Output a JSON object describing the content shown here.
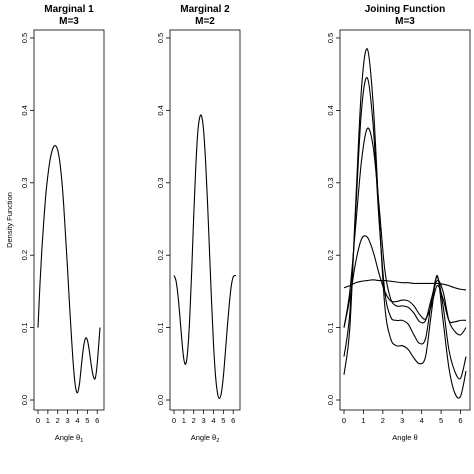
{
  "chart_data": [
    {
      "type": "line",
      "title": "Marginal 1",
      "subtitle": "M=3",
      "xlabel": "Angle θ",
      "xlabel_sub": "1",
      "ylabel": "Density Function",
      "xlim": [
        0,
        6.2832
      ],
      "ylim": [
        0,
        0.5
      ],
      "xticks": [
        0,
        1,
        2,
        3,
        4,
        5,
        6
      ],
      "yticks": [
        0.0,
        0.1,
        0.2,
        0.3,
        0.4,
        0.5
      ],
      "ytick_labels": [
        "0.0",
        "0.1",
        "0.2",
        "0.3",
        "0.4",
        "0.5"
      ],
      "series": [
        {
          "x": [
            0,
            0.2,
            0.4,
            0.6,
            0.8,
            1.0,
            1.2,
            1.4,
            1.6,
            1.8,
            2.0,
            2.2,
            2.4,
            2.6,
            2.8,
            3.0,
            3.2,
            3.4,
            3.6,
            3.8,
            4.0,
            4.2,
            4.4,
            4.6,
            4.8,
            5.0,
            5.2,
            5.4,
            5.6,
            5.8,
            6.0,
            6.2832
          ],
          "y": [
            0.1,
            0.16,
            0.21,
            0.25,
            0.285,
            0.31,
            0.33,
            0.343,
            0.35,
            0.351,
            0.345,
            0.33,
            0.305,
            0.27,
            0.225,
            0.18,
            0.13,
            0.085,
            0.045,
            0.018,
            0.01,
            0.022,
            0.048,
            0.072,
            0.085,
            0.083,
            0.068,
            0.048,
            0.033,
            0.03,
            0.05,
            0.1
          ]
        }
      ]
    },
    {
      "type": "line",
      "title": "Marginal 2",
      "subtitle": "M=2",
      "xlabel": "Angle θ",
      "xlabel_sub": "2",
      "ylabel": "",
      "xlim": [
        0,
        6.2832
      ],
      "ylim": [
        0,
        0.5
      ],
      "xticks": [
        0,
        1,
        2,
        3,
        4,
        5,
        6
      ],
      "yticks": [
        0.0,
        0.1,
        0.2,
        0.3,
        0.4,
        0.5
      ],
      "ytick_labels": [
        "0.0",
        "0.1",
        "0.2",
        "0.3",
        "0.4",
        "0.5"
      ],
      "series": [
        {
          "x": [
            0,
            0.2,
            0.4,
            0.6,
            0.8,
            1.0,
            1.2,
            1.4,
            1.6,
            1.8,
            2.0,
            2.2,
            2.4,
            2.6,
            2.8,
            3.0,
            3.2,
            3.4,
            3.6,
            3.8,
            4.0,
            4.2,
            4.4,
            4.6,
            4.8,
            5.0,
            5.2,
            5.4,
            5.6,
            5.8,
            6.0,
            6.2832
          ],
          "y": [
            0.172,
            0.165,
            0.145,
            0.115,
            0.082,
            0.056,
            0.05,
            0.07,
            0.115,
            0.18,
            0.255,
            0.32,
            0.368,
            0.39,
            0.392,
            0.372,
            0.33,
            0.272,
            0.205,
            0.138,
            0.078,
            0.035,
            0.01,
            0.002,
            0.01,
            0.032,
            0.065,
            0.1,
            0.132,
            0.157,
            0.17,
            0.172
          ]
        }
      ]
    },
    {
      "type": "line",
      "title": "Joining Function",
      "subtitle": "M=3",
      "xlabel": "Angle θ",
      "xlabel_sub": "",
      "ylabel": "",
      "xlim": [
        0,
        6.2832
      ],
      "ylim": [
        0,
        0.5
      ],
      "xticks": [
        0,
        1,
        2,
        3,
        4,
        5,
        6
      ],
      "yticks": [
        0.0,
        0.1,
        0.2,
        0.3,
        0.4,
        0.5
      ],
      "ytick_labels": [
        "0.0",
        "0.1",
        "0.2",
        "0.3",
        "0.4",
        "0.5"
      ],
      "series": [
        {
          "x": [
            0,
            0.3,
            0.6,
            0.9,
            1.2,
            1.5,
            1.8,
            2.1,
            2.4,
            2.7,
            3.0,
            3.3,
            3.6,
            3.9,
            4.2,
            4.5,
            4.8,
            5.1,
            5.4,
            5.7,
            6.0,
            6.2832
          ],
          "y": [
            0.155,
            0.158,
            0.162,
            0.164,
            0.165,
            0.166,
            0.165,
            0.165,
            0.164,
            0.163,
            0.162,
            0.162,
            0.161,
            0.161,
            0.161,
            0.161,
            0.161,
            0.16,
            0.158,
            0.155,
            0.153,
            0.152
          ]
        },
        {
          "x": [
            0,
            0.3,
            0.6,
            0.9,
            1.2,
            1.5,
            1.8,
            2.1,
            2.4,
            2.7,
            3.0,
            3.3,
            3.6,
            3.9,
            4.2,
            4.5,
            4.8,
            5.1,
            5.4,
            5.7,
            6.0,
            6.2832
          ],
          "y": [
            0.1,
            0.14,
            0.19,
            0.222,
            0.225,
            0.205,
            0.175,
            0.15,
            0.137,
            0.136,
            0.138,
            0.137,
            0.13,
            0.118,
            0.112,
            0.13,
            0.158,
            0.14,
            0.11,
            0.108,
            0.11,
            0.11
          ]
        },
        {
          "x": [
            0,
            0.3,
            0.6,
            0.9,
            1.2,
            1.5,
            1.8,
            2.1,
            2.4,
            2.7,
            3.0,
            3.3,
            3.6,
            3.9,
            4.2,
            4.5,
            4.8,
            5.1,
            5.4,
            5.7,
            6.0,
            6.2832
          ],
          "y": [
            0.1,
            0.15,
            0.24,
            0.33,
            0.375,
            0.35,
            0.27,
            0.18,
            0.14,
            0.13,
            0.13,
            0.128,
            0.12,
            0.108,
            0.11,
            0.14,
            0.165,
            0.15,
            0.11,
            0.095,
            0.09,
            0.1
          ]
        },
        {
          "x": [
            0,
            0.3,
            0.6,
            0.9,
            1.2,
            1.5,
            1.8,
            2.1,
            2.4,
            2.7,
            3.0,
            3.3,
            3.6,
            3.9,
            4.2,
            4.5,
            4.8,
            5.1,
            5.4,
            5.7,
            6.0,
            6.2832
          ],
          "y": [
            0.06,
            0.12,
            0.26,
            0.4,
            0.445,
            0.38,
            0.25,
            0.15,
            0.115,
            0.11,
            0.11,
            0.105,
            0.09,
            0.078,
            0.085,
            0.135,
            0.17,
            0.13,
            0.07,
            0.04,
            0.03,
            0.06
          ]
        },
        {
          "x": [
            0,
            0.3,
            0.6,
            0.9,
            1.2,
            1.5,
            1.8,
            2.1,
            2.4,
            2.7,
            3.0,
            3.3,
            3.6,
            3.9,
            4.2,
            4.5,
            4.8,
            5.1,
            5.4,
            5.7,
            6.0,
            6.2832
          ],
          "y": [
            0.035,
            0.1,
            0.27,
            0.43,
            0.485,
            0.41,
            0.26,
            0.13,
            0.085,
            0.075,
            0.075,
            0.07,
            0.058,
            0.05,
            0.06,
            0.12,
            0.172,
            0.11,
            0.045,
            0.01,
            0.005,
            0.04
          ]
        }
      ]
    }
  ]
}
